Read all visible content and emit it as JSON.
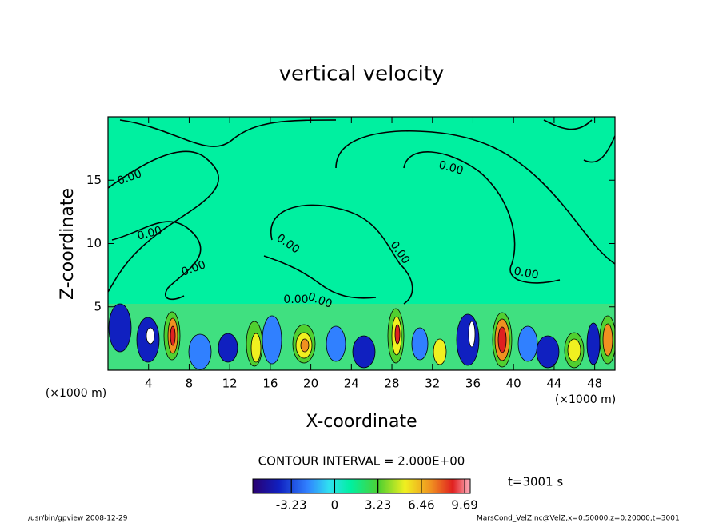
{
  "chart_data": {
    "type": "contour",
    "title": "vertical velocity",
    "xlabel": "X-coordinate",
    "ylabel": "Z-coordinate",
    "x_unit": "(×1000 m)",
    "xlim": [
      0,
      50
    ],
    "xticks": [
      4,
      8,
      12,
      16,
      20,
      24,
      28,
      32,
      36,
      40,
      44,
      48
    ],
    "ylim": [
      0,
      20
    ],
    "yticks": [
      5,
      10,
      15
    ],
    "contour_labels": [
      "0.00",
      "0.00",
      "0.00",
      "0.00",
      "0.00",
      "0.00",
      "0.00",
      "0.00",
      "0.00"
    ],
    "annotation": "CONTOUR INTERVAL = 2.000E+00",
    "colorbar": {
      "lim": [
        -6.1,
        10.1
      ],
      "ticks": [
        -3.23,
        0,
        3.23,
        6.46,
        9.69
      ]
    },
    "time_label": "t=3001 s",
    "footer_left": "/usr/bin/gpview   2008-12-29",
    "footer_right": "MarsCond_VelZ.nc@VelZ,x=0:50000,z=0:20000,t=3001"
  }
}
